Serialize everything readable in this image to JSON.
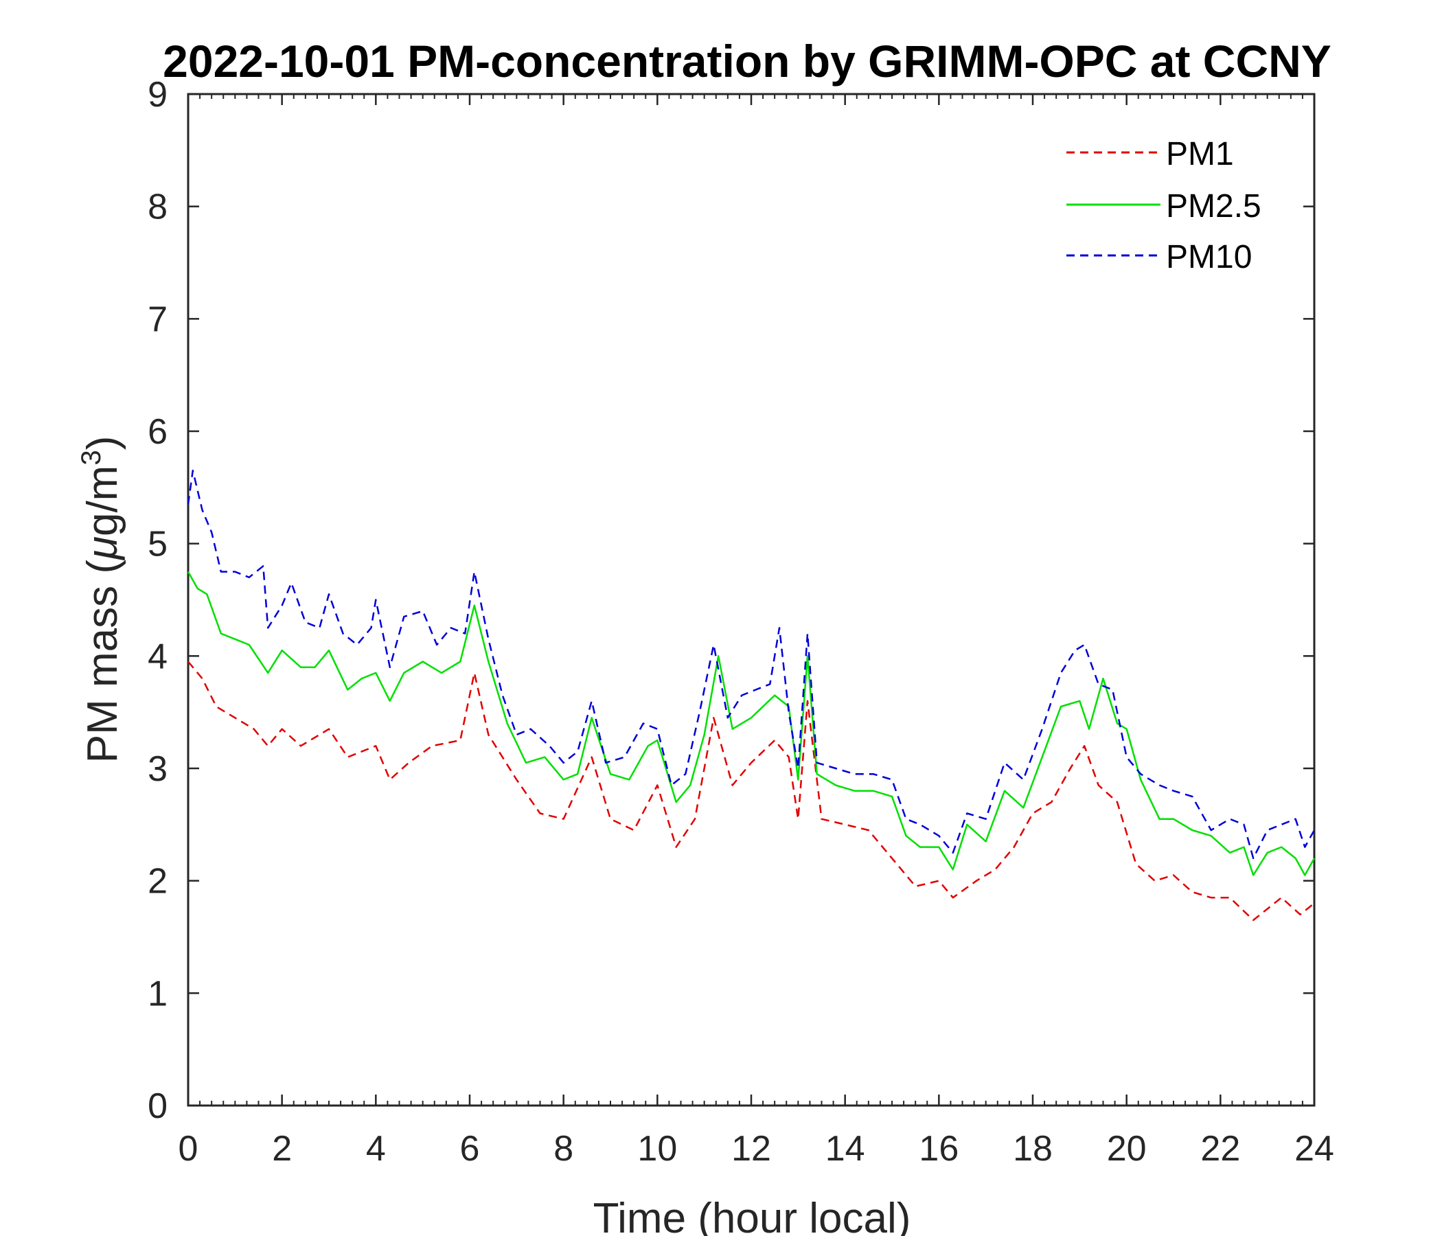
{
  "chart_data": {
    "type": "line",
    "title": "2022-10-01 PM-concentration by GRIMM-OPC at CCNY",
    "xlabel": "Time (hour local)",
    "ylabel": "PM mass (μg/m³)",
    "ylabel_parts": {
      "prefix": "PM mass (",
      "mu": "μ",
      "unit": "g/m",
      "sup": "3",
      "suffix": ")"
    },
    "xlim": [
      0,
      24
    ],
    "ylim": [
      0,
      9
    ],
    "x_ticks": [
      "0",
      "2",
      "4",
      "6",
      "8",
      "10",
      "12",
      "14",
      "16",
      "18",
      "20",
      "22",
      "24"
    ],
    "y_ticks": [
      "0",
      "1",
      "2",
      "3",
      "4",
      "5",
      "6",
      "7",
      "8",
      "9"
    ],
    "legend_position": "top-right",
    "series": [
      {
        "name": "PM1",
        "color": "#e00000",
        "style": "dashed",
        "x": [
          0,
          0.3,
          0.6,
          1.0,
          1.4,
          1.7,
          2.0,
          2.4,
          3.0,
          3.4,
          4.0,
          4.3,
          4.7,
          5.2,
          5.8,
          6.1,
          6.4,
          7.0,
          7.5,
          8.0,
          8.6,
          9.0,
          9.5,
          10.0,
          10.4,
          10.8,
          11.2,
          11.6,
          12.0,
          12.5,
          12.8,
          13.0,
          13.2,
          13.5,
          14.0,
          14.5,
          15.0,
          15.5,
          16.0,
          16.3,
          16.8,
          17.2,
          17.6,
          18.0,
          18.4,
          18.8,
          19.1,
          19.4,
          19.8,
          20.2,
          20.6,
          21.0,
          21.4,
          21.8,
          22.2,
          22.7,
          23.0,
          23.3,
          23.7,
          24.0
        ],
        "y": [
          3.95,
          3.8,
          3.55,
          3.45,
          3.35,
          3.2,
          3.35,
          3.2,
          3.35,
          3.1,
          3.2,
          2.9,
          3.05,
          3.2,
          3.25,
          3.85,
          3.3,
          2.9,
          2.6,
          2.55,
          3.1,
          2.55,
          2.45,
          2.85,
          2.3,
          2.55,
          3.45,
          2.85,
          3.05,
          3.25,
          3.1,
          2.55,
          3.6,
          2.55,
          2.5,
          2.45,
          2.2,
          1.95,
          2.0,
          1.85,
          2.0,
          2.1,
          2.3,
          2.6,
          2.7,
          3.0,
          3.2,
          2.85,
          2.7,
          2.15,
          2.0,
          2.05,
          1.9,
          1.85,
          1.85,
          1.65,
          1.75,
          1.85,
          1.7,
          1.8
        ]
      },
      {
        "name": "PM2.5",
        "color": "#00e000",
        "style": "solid",
        "x": [
          0,
          0.2,
          0.4,
          0.7,
          1.0,
          1.3,
          1.7,
          2.0,
          2.4,
          2.7,
          3.0,
          3.4,
          3.7,
          4.0,
          4.3,
          4.6,
          5.0,
          5.4,
          5.8,
          6.1,
          6.4,
          6.8,
          7.2,
          7.6,
          8.0,
          8.3,
          8.6,
          9.0,
          9.4,
          9.8,
          10.0,
          10.4,
          10.7,
          11.0,
          11.3,
          11.6,
          12.0,
          12.5,
          12.8,
          13.0,
          13.2,
          13.4,
          13.8,
          14.2,
          14.6,
          15.0,
          15.3,
          15.6,
          16.0,
          16.3,
          16.6,
          17.0,
          17.4,
          17.8,
          18.2,
          18.6,
          19.0,
          19.2,
          19.5,
          19.8,
          20.0,
          20.3,
          20.7,
          21.0,
          21.4,
          21.8,
          22.2,
          22.5,
          22.7,
          23.0,
          23.3,
          23.6,
          23.8,
          24.0
        ],
        "y": [
          4.75,
          4.6,
          4.55,
          4.2,
          4.15,
          4.1,
          3.85,
          4.05,
          3.9,
          3.9,
          4.05,
          3.7,
          3.8,
          3.85,
          3.6,
          3.85,
          3.95,
          3.85,
          3.95,
          4.45,
          3.95,
          3.4,
          3.05,
          3.1,
          2.9,
          2.95,
          3.45,
          2.95,
          2.9,
          3.2,
          3.25,
          2.7,
          2.85,
          3.3,
          4.0,
          3.35,
          3.45,
          3.65,
          3.55,
          2.9,
          4.0,
          2.95,
          2.85,
          2.8,
          2.8,
          2.75,
          2.4,
          2.3,
          2.3,
          2.1,
          2.5,
          2.35,
          2.8,
          2.65,
          3.1,
          3.55,
          3.6,
          3.35,
          3.8,
          3.4,
          3.35,
          2.9,
          2.55,
          2.55,
          2.45,
          2.4,
          2.25,
          2.3,
          2.05,
          2.25,
          2.3,
          2.2,
          2.05,
          2.2
        ]
      },
      {
        "name": "PM10",
        "color": "#0000d8",
        "style": "dashed",
        "x": [
          0,
          0.1,
          0.3,
          0.5,
          0.7,
          1.0,
          1.3,
          1.6,
          1.7,
          2.0,
          2.2,
          2.5,
          2.8,
          3.0,
          3.3,
          3.6,
          3.9,
          4.0,
          4.3,
          4.6,
          5.0,
          5.3,
          5.6,
          5.9,
          6.1,
          6.4,
          6.7,
          7.0,
          7.3,
          7.7,
          8.0,
          8.3,
          8.6,
          8.9,
          9.3,
          9.7,
          10.0,
          10.3,
          10.6,
          10.9,
          11.2,
          11.5,
          11.8,
          12.1,
          12.4,
          12.6,
          12.8,
          13.0,
          13.2,
          13.4,
          13.8,
          14.2,
          14.6,
          15.0,
          15.3,
          15.6,
          16.0,
          16.3,
          16.6,
          17.0,
          17.4,
          17.8,
          18.2,
          18.6,
          18.9,
          19.1,
          19.4,
          19.7,
          20.0,
          20.3,
          20.7,
          21.0,
          21.4,
          21.8,
          22.2,
          22.5,
          22.7,
          23.0,
          23.3,
          23.6,
          23.8,
          24.0
        ],
        "y": [
          5.35,
          5.65,
          5.3,
          5.1,
          4.75,
          4.75,
          4.7,
          4.8,
          4.25,
          4.45,
          4.65,
          4.3,
          4.25,
          4.55,
          4.2,
          4.1,
          4.25,
          4.5,
          3.9,
          4.35,
          4.4,
          4.1,
          4.25,
          4.2,
          4.75,
          4.15,
          3.65,
          3.3,
          3.35,
          3.2,
          3.05,
          3.15,
          3.6,
          3.05,
          3.1,
          3.4,
          3.35,
          2.85,
          2.95,
          3.5,
          4.1,
          3.45,
          3.65,
          3.7,
          3.75,
          4.25,
          3.5,
          3.0,
          4.2,
          3.05,
          3.0,
          2.95,
          2.95,
          2.9,
          2.55,
          2.5,
          2.4,
          2.25,
          2.6,
          2.55,
          3.05,
          2.9,
          3.35,
          3.85,
          4.05,
          4.1,
          3.75,
          3.7,
          3.1,
          2.95,
          2.85,
          2.8,
          2.75,
          2.45,
          2.55,
          2.5,
          2.2,
          2.45,
          2.5,
          2.55,
          2.3,
          2.45
        ]
      }
    ]
  }
}
